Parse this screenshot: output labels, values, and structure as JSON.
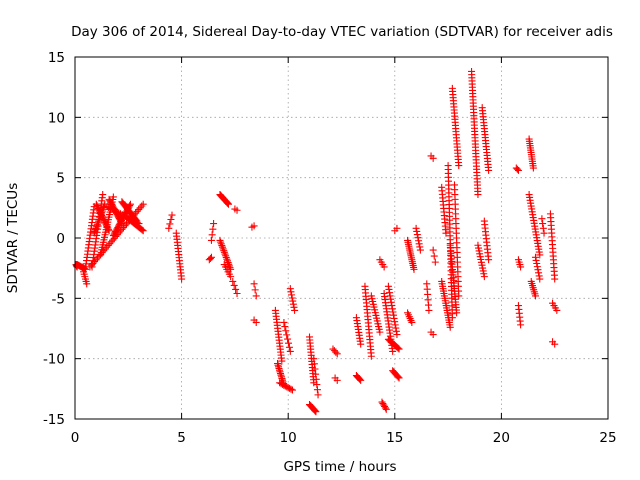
{
  "chart_data": {
    "type": "scatter",
    "title": "Day 306 of 2014, Sidereal Day-to-day VTEC variation (SDTVAR) for receiver adis",
    "xlabel": "GPS time / hours",
    "ylabel": "SDTVAR / TECUs",
    "xlim": [
      0,
      25
    ],
    "ylim": [
      -15,
      15
    ],
    "xticks": [
      0,
      5,
      10,
      15,
      20,
      25
    ],
    "yticks": [
      -15,
      -10,
      -5,
      0,
      5,
      10,
      15
    ],
    "grid": true,
    "marker": "+",
    "color": "#ff0000",
    "series": [
      {
        "name": "SDTVAR",
        "segments": [
          [
            0.05,
            0.1,
            -2.2,
            -2.4,
            6
          ],
          [
            0.1,
            0.5,
            -2.2,
            -2.6,
            12
          ],
          [
            0.4,
            0.55,
            -2.8,
            -3.8,
            6
          ],
          [
            0.5,
            0.9,
            -2.4,
            2.6,
            20
          ],
          [
            0.8,
            1.3,
            -2.4,
            3.6,
            24
          ],
          [
            0.9,
            1.4,
            0.4,
            2.8,
            18
          ],
          [
            1.0,
            1.6,
            2.8,
            0.6,
            20
          ],
          [
            1.2,
            1.8,
            -1.4,
            3.4,
            24
          ],
          [
            1.6,
            2.2,
            3.2,
            1.2,
            20
          ],
          [
            1.8,
            2.6,
            0.2,
            2.8,
            24
          ],
          [
            2.2,
            2.9,
            3.0,
            1.4,
            20
          ],
          [
            2.5,
            3.2,
            1.6,
            0.6,
            16
          ],
          [
            0.7,
            3.2,
            -2.4,
            2.8,
            36
          ],
          [
            1.5,
            3.0,
            2.6,
            1.2,
            20
          ],
          [
            4.4,
            4.55,
            0.8,
            1.9,
            4
          ],
          [
            4.75,
            5.0,
            0.4,
            -3.4,
            16
          ],
          [
            6.4,
            6.5,
            -0.2,
            1.2,
            4
          ],
          [
            6.3,
            6.4,
            -1.8,
            -1.6,
            3
          ],
          [
            6.8,
            7.2,
            3.6,
            2.8,
            14
          ],
          [
            6.8,
            7.3,
            -0.2,
            -2.6,
            18
          ],
          [
            7.0,
            7.3,
            -2.2,
            -3.2,
            6
          ],
          [
            7.4,
            7.6,
            -3.6,
            -4.6,
            4
          ],
          [
            7.5,
            7.6,
            2.4,
            2.3,
            2
          ],
          [
            8.3,
            8.4,
            0.9,
            1.0,
            2
          ],
          [
            8.4,
            8.5,
            -3.8,
            -4.8,
            3
          ],
          [
            8.4,
            8.5,
            -6.8,
            -7.0,
            2
          ],
          [
            9.4,
            9.7,
            -6.0,
            -10.2,
            18
          ],
          [
            9.5,
            9.8,
            -10.4,
            -12.2,
            14
          ],
          [
            9.6,
            10.2,
            -12.0,
            -12.6,
            10
          ],
          [
            9.8,
            10.1,
            -7.0,
            -9.4,
            8
          ],
          [
            10.1,
            10.3,
            -4.2,
            -6.0,
            8
          ],
          [
            11.0,
            11.2,
            -8.2,
            -12.0,
            16
          ],
          [
            11.0,
            11.3,
            -13.8,
            -14.4,
            10
          ],
          [
            11.2,
            11.4,
            -10.0,
            -13.0,
            8
          ],
          [
            12.1,
            12.3,
            -9.2,
            -9.6,
            4
          ],
          [
            12.2,
            12.3,
            -11.6,
            -11.8,
            2
          ],
          [
            13.2,
            13.4,
            -6.6,
            -8.8,
            10
          ],
          [
            13.2,
            13.4,
            -11.4,
            -11.8,
            6
          ],
          [
            13.6,
            13.9,
            -4.0,
            -9.8,
            22
          ],
          [
            13.9,
            14.3,
            -4.8,
            -7.8,
            14
          ],
          [
            14.3,
            14.5,
            -1.8,
            -2.4,
            4
          ],
          [
            14.4,
            14.6,
            -13.6,
            -14.2,
            6
          ],
          [
            14.5,
            14.9,
            -4.6,
            -9.4,
            20
          ],
          [
            14.7,
            15.1,
            -4.0,
            -8.0,
            16
          ],
          [
            14.7,
            15.2,
            -8.4,
            -9.2,
            12
          ],
          [
            14.9,
            15.2,
            -11.0,
            -11.6,
            8
          ],
          [
            15.0,
            15.1,
            0.6,
            0.8,
            2
          ],
          [
            15.6,
            15.9,
            -0.2,
            -2.6,
            16
          ],
          [
            15.6,
            15.8,
            -6.2,
            -7.0,
            6
          ],
          [
            16.0,
            16.2,
            0.8,
            -1.0,
            8
          ],
          [
            16.5,
            16.6,
            -3.8,
            -6.0,
            6
          ],
          [
            16.7,
            16.8,
            6.8,
            6.6,
            2
          ],
          [
            16.7,
            16.8,
            -7.8,
            -8.0,
            2
          ],
          [
            16.8,
            16.9,
            -1.0,
            -2.0,
            3
          ],
          [
            17.2,
            17.4,
            4.2,
            0.4,
            14
          ],
          [
            17.2,
            17.6,
            -3.6,
            -7.4,
            20
          ],
          [
            17.5,
            17.7,
            6.0,
            -6.6,
            40
          ],
          [
            17.6,
            17.9,
            -0.6,
            -6.2,
            26
          ],
          [
            17.7,
            18.0,
            12.4,
            6.0,
            26
          ],
          [
            17.8,
            18.0,
            4.4,
            -4.8,
            24
          ],
          [
            18.6,
            18.9,
            13.8,
            3.6,
            40
          ],
          [
            18.9,
            19.2,
            -0.6,
            -3.2,
            12
          ],
          [
            19.1,
            19.4,
            10.8,
            5.6,
            22
          ],
          [
            19.2,
            19.4,
            1.4,
            -1.8,
            12
          ],
          [
            20.7,
            20.8,
            5.8,
            5.6,
            3
          ],
          [
            20.8,
            20.9,
            -1.8,
            -2.4,
            4
          ],
          [
            20.8,
            20.9,
            -5.6,
            -7.2,
            6
          ],
          [
            21.3,
            21.5,
            8.2,
            5.8,
            14
          ],
          [
            21.3,
            21.8,
            3.6,
            -1.4,
            22
          ],
          [
            21.4,
            21.6,
            -3.6,
            -4.8,
            8
          ],
          [
            21.6,
            21.8,
            -1.6,
            -3.4,
            8
          ],
          [
            21.9,
            22.0,
            1.6,
            0.4,
            4
          ],
          [
            22.3,
            22.5,
            2.0,
            -3.4,
            18
          ],
          [
            22.4,
            22.6,
            -5.4,
            -6.0,
            4
          ],
          [
            22.4,
            22.5,
            -8.6,
            -8.8,
            2
          ]
        ]
      }
    ]
  }
}
